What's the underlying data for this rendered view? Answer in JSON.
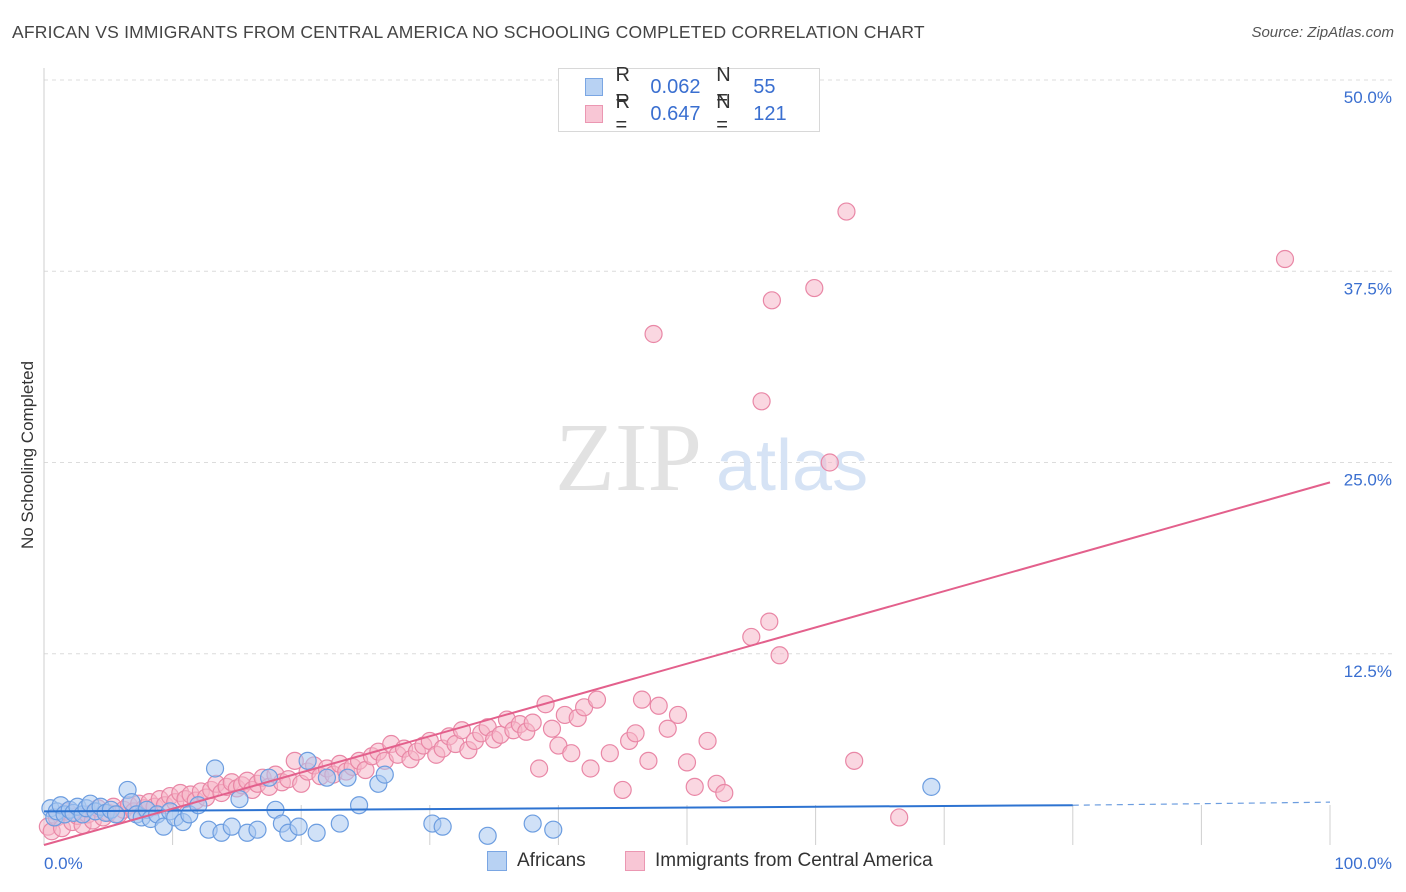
{
  "header": {
    "title": "AFRICAN VS IMMIGRANTS FROM CENTRAL AMERICA NO SCHOOLING COMPLETED CORRELATION CHART",
    "source": "Source: ZipAtlas.com"
  },
  "watermark": {
    "zip": "ZIP",
    "atlas": "atlas"
  },
  "legend_top": {
    "rows": [
      {
        "r_label": "R =",
        "r_value": "0.062",
        "n_label": "N =",
        "n_value": "55"
      },
      {
        "r_label": "R =",
        "r_value": "0.647",
        "n_label": "N =",
        "n_value": "121"
      }
    ]
  },
  "legend_bottom": {
    "items": [
      "Africans",
      "Immigrants from Central America"
    ]
  },
  "colors": {
    "blue_fill": "#a9c8f0",
    "blue_stroke": "#6c9de0",
    "blue_line": "#2d73d1",
    "pink_fill": "#f5b6c9",
    "pink_stroke": "#e987a6",
    "pink_line": "#e3608c",
    "tick_text": "#3a6fd0",
    "grid": "#dcdcdc"
  },
  "chart_data": {
    "type": "scatter",
    "title": "AFRICAN VS IMMIGRANTS FROM CENTRAL AMERICA NO SCHOOLING COMPLETED CORRELATION CHART",
    "xlabel": "",
    "ylabel": "No Schooling Completed",
    "xlim": [
      0,
      100
    ],
    "ylim": [
      0,
      50
    ],
    "x_tick_labels": [
      "0.0%",
      "100.0%"
    ],
    "y_ticks": [
      12.5,
      25.0,
      37.5,
      50.0
    ],
    "y_tick_labels": [
      "12.5%",
      "25.0%",
      "37.5%",
      "50.0%"
    ],
    "grid": true,
    "legend_position": "top-center",
    "series": [
      {
        "name": "Africans",
        "R": 0.062,
        "N": 55,
        "trend": {
          "x": [
            0,
            80
          ],
          "y": [
            2.2,
            2.6
          ],
          "dashed_extension_to_x": 100,
          "dashed_end_y": 2.8
        },
        "points": [
          [
            0.5,
            2.4
          ],
          [
            0.8,
            1.8
          ],
          [
            1.0,
            2.2
          ],
          [
            1.3,
            2.6
          ],
          [
            1.6,
            2.0
          ],
          [
            2.0,
            2.3
          ],
          [
            2.3,
            2.1
          ],
          [
            2.6,
            2.5
          ],
          [
            3.0,
            2.0
          ],
          [
            3.3,
            2.4
          ],
          [
            3.6,
            2.7
          ],
          [
            4.0,
            2.2
          ],
          [
            4.4,
            2.5
          ],
          [
            4.8,
            2.1
          ],
          [
            5.2,
            2.3
          ],
          [
            5.6,
            2.0
          ],
          [
            6.5,
            3.6
          ],
          [
            6.8,
            2.8
          ],
          [
            7.2,
            2.0
          ],
          [
            7.6,
            1.8
          ],
          [
            8.0,
            2.3
          ],
          [
            8.3,
            1.7
          ],
          [
            8.8,
            2.0
          ],
          [
            9.3,
            1.2
          ],
          [
            9.8,
            2.2
          ],
          [
            10.2,
            1.8
          ],
          [
            10.8,
            1.5
          ],
          [
            11.3,
            2.0
          ],
          [
            12.0,
            2.6
          ],
          [
            12.8,
            1.0
          ],
          [
            13.3,
            5.0
          ],
          [
            13.8,
            0.8
          ],
          [
            14.6,
            1.2
          ],
          [
            15.2,
            3.0
          ],
          [
            15.8,
            0.8
          ],
          [
            16.6,
            1.0
          ],
          [
            17.5,
            4.4
          ],
          [
            18.0,
            2.3
          ],
          [
            18.5,
            1.4
          ],
          [
            19.0,
            0.8
          ],
          [
            19.8,
            1.2
          ],
          [
            20.5,
            5.5
          ],
          [
            21.2,
            0.8
          ],
          [
            22.0,
            4.4
          ],
          [
            23.0,
            1.4
          ],
          [
            23.6,
            4.4
          ],
          [
            24.5,
            2.6
          ],
          [
            26.0,
            4.0
          ],
          [
            26.5,
            4.6
          ],
          [
            30.2,
            1.4
          ],
          [
            31.0,
            1.2
          ],
          [
            34.5,
            0.6
          ],
          [
            38.0,
            1.4
          ],
          [
            39.6,
            1.0
          ],
          [
            69.0,
            3.8
          ]
        ]
      },
      {
        "name": "Immigrants from Central America",
        "R": 0.647,
        "N": 121,
        "trend": {
          "x": [
            0,
            100
          ],
          "y": [
            0.0,
            23.7
          ]
        },
        "points": [
          [
            0.3,
            1.2
          ],
          [
            0.6,
            0.9
          ],
          [
            1.0,
            1.8
          ],
          [
            1.4,
            1.1
          ],
          [
            1.8,
            2.2
          ],
          [
            2.2,
            1.5
          ],
          [
            2.6,
            1.9
          ],
          [
            3.0,
            1.3
          ],
          [
            3.4,
            2.0
          ],
          [
            3.8,
            1.6
          ],
          [
            4.2,
            2.4
          ],
          [
            4.6,
            1.8
          ],
          [
            5.0,
            2.1
          ],
          [
            5.4,
            2.5
          ],
          [
            5.8,
            2.0
          ],
          [
            6.2,
            2.3
          ],
          [
            6.6,
            2.6
          ],
          [
            7.0,
            2.2
          ],
          [
            7.4,
            2.7
          ],
          [
            7.8,
            2.4
          ],
          [
            8.2,
            2.8
          ],
          [
            8.6,
            2.5
          ],
          [
            9.0,
            3.0
          ],
          [
            9.4,
            2.6
          ],
          [
            9.8,
            3.2
          ],
          [
            10.2,
            2.8
          ],
          [
            10.6,
            3.4
          ],
          [
            11.0,
            3.0
          ],
          [
            11.4,
            3.3
          ],
          [
            11.8,
            2.9
          ],
          [
            12.2,
            3.5
          ],
          [
            12.6,
            3.1
          ],
          [
            13.0,
            3.6
          ],
          [
            13.4,
            4.0
          ],
          [
            13.8,
            3.4
          ],
          [
            14.2,
            3.8
          ],
          [
            14.6,
            4.1
          ],
          [
            15.0,
            3.7
          ],
          [
            15.4,
            3.9
          ],
          [
            15.8,
            4.2
          ],
          [
            16.2,
            3.6
          ],
          [
            16.6,
            4.0
          ],
          [
            17.0,
            4.4
          ],
          [
            17.5,
            3.8
          ],
          [
            18.0,
            4.6
          ],
          [
            18.5,
            4.1
          ],
          [
            19.0,
            4.3
          ],
          [
            19.5,
            5.5
          ],
          [
            20.0,
            4.0
          ],
          [
            20.5,
            4.8
          ],
          [
            21.0,
            5.2
          ],
          [
            21.5,
            4.5
          ],
          [
            22.0,
            5.0
          ],
          [
            22.5,
            4.6
          ],
          [
            23.0,
            5.3
          ],
          [
            23.5,
            4.8
          ],
          [
            24.0,
            5.1
          ],
          [
            24.5,
            5.5
          ],
          [
            25.0,
            4.9
          ],
          [
            25.5,
            5.8
          ],
          [
            26.0,
            6.1
          ],
          [
            26.5,
            5.5
          ],
          [
            27.0,
            6.6
          ],
          [
            27.5,
            5.9
          ],
          [
            28.0,
            6.3
          ],
          [
            28.5,
            5.6
          ],
          [
            29.0,
            6.1
          ],
          [
            29.5,
            6.5
          ],
          [
            30.0,
            6.8
          ],
          [
            30.5,
            5.9
          ],
          [
            31.0,
            6.3
          ],
          [
            31.5,
            7.1
          ],
          [
            32.0,
            6.6
          ],
          [
            32.5,
            7.5
          ],
          [
            33.0,
            6.2
          ],
          [
            33.5,
            6.8
          ],
          [
            34.0,
            7.3
          ],
          [
            34.5,
            7.7
          ],
          [
            35.0,
            6.9
          ],
          [
            35.5,
            7.2
          ],
          [
            36.0,
            8.2
          ],
          [
            36.5,
            7.5
          ],
          [
            37.0,
            7.9
          ],
          [
            37.5,
            7.4
          ],
          [
            38.0,
            8.0
          ],
          [
            38.5,
            5.0
          ],
          [
            39.0,
            9.2
          ],
          [
            39.5,
            7.6
          ],
          [
            40.0,
            6.5
          ],
          [
            40.5,
            8.5
          ],
          [
            41.0,
            6.0
          ],
          [
            41.5,
            8.3
          ],
          [
            42.0,
            9.0
          ],
          [
            42.5,
            5.0
          ],
          [
            43.0,
            9.5
          ],
          [
            44.0,
            6.0
          ],
          [
            45.0,
            3.6
          ],
          [
            45.5,
            6.8
          ],
          [
            46.0,
            7.3
          ],
          [
            46.5,
            9.5
          ],
          [
            47.0,
            5.5
          ],
          [
            47.8,
            9.1
          ],
          [
            48.5,
            7.6
          ],
          [
            49.3,
            8.5
          ],
          [
            50.0,
            5.4
          ],
          [
            50.6,
            3.8
          ],
          [
            51.6,
            6.8
          ],
          [
            52.3,
            4.0
          ],
          [
            52.9,
            3.4
          ],
          [
            55.8,
            29.0
          ],
          [
            55.0,
            13.6
          ],
          [
            56.4,
            14.6
          ],
          [
            57.2,
            12.4
          ],
          [
            56.6,
            35.6
          ],
          [
            47.4,
            33.4
          ],
          [
            59.9,
            36.4
          ],
          [
            61.1,
            25.0
          ],
          [
            62.4,
            41.4
          ],
          [
            63.0,
            5.5
          ],
          [
            66.5,
            1.8
          ],
          [
            96.5,
            38.3
          ]
        ]
      }
    ]
  }
}
